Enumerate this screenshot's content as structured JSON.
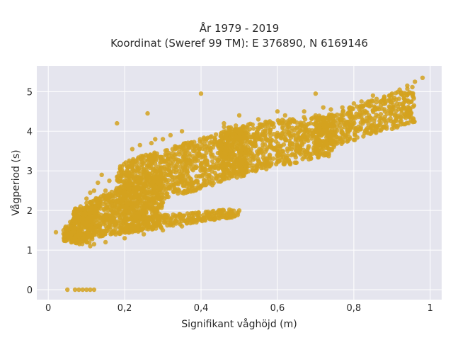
{
  "chart_data": {
    "type": "scatter",
    "title_line1": "År 1979 - 2019",
    "title_line2": "Koordinat (Sweref 99 TM): E 376890, N 6169146",
    "xlabel": "Signifikant våghöjd (m)",
    "ylabel": "Vågperiod (s)",
    "xlim": [
      -0.03,
      1.03
    ],
    "ylim": [
      -0.25,
      5.65
    ],
    "xticks": [
      0,
      0.2,
      0.4,
      0.6,
      0.8,
      1
    ],
    "xtick_labels": [
      "0",
      "0,2",
      "0,4",
      "0,6",
      "0,8",
      "1"
    ],
    "yticks": [
      0,
      1,
      2,
      3,
      4,
      5
    ],
    "ytick_labels": [
      "0",
      "1",
      "2",
      "3",
      "4",
      "5"
    ],
    "grid": true,
    "background": "#e5e5ee",
    "marker_color": "#d4a21e",
    "series": [
      {
        "points": [
          [
            0.05,
            0.0
          ],
          [
            0.07,
            0.0
          ],
          [
            0.08,
            0.0
          ],
          [
            0.09,
            0.0
          ],
          [
            0.1,
            0.0
          ],
          [
            0.11,
            0.0
          ],
          [
            0.12,
            0.0
          ],
          [
            0.02,
            1.45
          ],
          [
            0.04,
            1.5
          ],
          [
            0.05,
            1.55
          ],
          [
            0.06,
            1.4
          ],
          [
            0.07,
            1.3
          ],
          [
            0.08,
            1.25
          ],
          [
            0.09,
            1.9
          ],
          [
            0.1,
            1.2
          ],
          [
            0.11,
            1.1
          ],
          [
            0.12,
            1.15
          ],
          [
            0.1,
            2.3
          ],
          [
            0.11,
            2.45
          ],
          [
            0.12,
            2.5
          ],
          [
            0.13,
            2.7
          ],
          [
            0.14,
            2.9
          ],
          [
            0.15,
            2.5
          ],
          [
            0.16,
            2.75
          ],
          [
            0.18,
            2.85
          ],
          [
            0.2,
            2.95
          ],
          [
            0.22,
            3.1
          ],
          [
            0.15,
            1.2
          ],
          [
            0.2,
            1.3
          ],
          [
            0.25,
            1.4
          ],
          [
            0.3,
            1.5
          ],
          [
            0.35,
            1.6
          ],
          [
            0.38,
            1.7
          ],
          [
            0.42,
            1.9
          ],
          [
            0.45,
            1.95
          ],
          [
            0.48,
            2.0
          ],
          [
            0.5,
            2.0
          ],
          [
            0.18,
            4.2
          ],
          [
            0.26,
            4.45
          ],
          [
            0.22,
            3.55
          ],
          [
            0.23,
            3.25
          ],
          [
            0.24,
            3.65
          ],
          [
            0.25,
            3.0
          ],
          [
            0.27,
            3.7
          ],
          [
            0.28,
            3.8
          ],
          [
            0.3,
            3.8
          ],
          [
            0.32,
            3.9
          ],
          [
            0.35,
            4.0
          ],
          [
            0.4,
            4.95
          ],
          [
            0.46,
            4.2
          ],
          [
            0.5,
            4.4
          ],
          [
            0.52,
            4.1
          ],
          [
            0.55,
            4.3
          ],
          [
            0.58,
            4.25
          ],
          [
            0.6,
            4.5
          ],
          [
            0.62,
            4.4
          ],
          [
            0.64,
            4.3
          ],
          [
            0.67,
            4.5
          ],
          [
            0.7,
            4.4
          ],
          [
            0.7,
            4.95
          ],
          [
            0.72,
            4.6
          ],
          [
            0.74,
            4.55
          ],
          [
            0.77,
            4.6
          ],
          [
            0.79,
            4.6
          ],
          [
            0.8,
            4.7
          ],
          [
            0.82,
            4.75
          ],
          [
            0.85,
            4.9
          ],
          [
            0.88,
            4.85
          ],
          [
            0.9,
            4.95
          ],
          [
            0.92,
            5.05
          ],
          [
            0.94,
            5.15
          ],
          [
            0.96,
            5.25
          ],
          [
            0.98,
            5.35
          ],
          [
            0.88,
            4.1
          ],
          [
            0.85,
            4.0
          ],
          [
            0.7,
            3.45
          ],
          [
            0.65,
            3.5
          ],
          [
            0.6,
            3.3
          ],
          [
            0.55,
            3.25
          ],
          [
            0.5,
            3.1
          ],
          [
            0.45,
            2.9
          ],
          [
            0.4,
            2.6
          ],
          [
            0.35,
            2.45
          ],
          [
            0.3,
            2.2
          ],
          [
            0.25,
            2.0
          ]
        ],
        "bands": [
          {
            "x0": 0.06,
            "x1": 0.3,
            "ylo0": 1.25,
            "yhi0": 2.0,
            "ylo1": 1.55,
            "yhi1": 3.15,
            "n": 900
          },
          {
            "x0": 0.18,
            "x1": 0.52,
            "ylo0": 1.9,
            "yhi0": 3.2,
            "ylo1": 2.9,
            "yhi1": 4.15,
            "n": 900
          },
          {
            "x0": 0.45,
            "x1": 0.75,
            "ylo0": 2.8,
            "yhi0": 4.1,
            "ylo1": 3.4,
            "yhi1": 4.45,
            "n": 700
          },
          {
            "x0": 0.7,
            "x1": 0.96,
            "ylo0": 3.5,
            "yhi0": 4.3,
            "ylo1": 4.2,
            "yhi1": 5.15,
            "n": 450
          },
          {
            "x0": 0.2,
            "x1": 0.5,
            "ylo0": 1.45,
            "yhi0": 1.8,
            "ylo1": 1.85,
            "yhi1": 2.05,
            "n": 250
          },
          {
            "x0": 0.04,
            "x1": 0.12,
            "ylo0": 1.2,
            "yhi0": 1.55,
            "ylo1": 1.1,
            "yhi1": 2.3,
            "n": 150
          }
        ]
      }
    ]
  }
}
